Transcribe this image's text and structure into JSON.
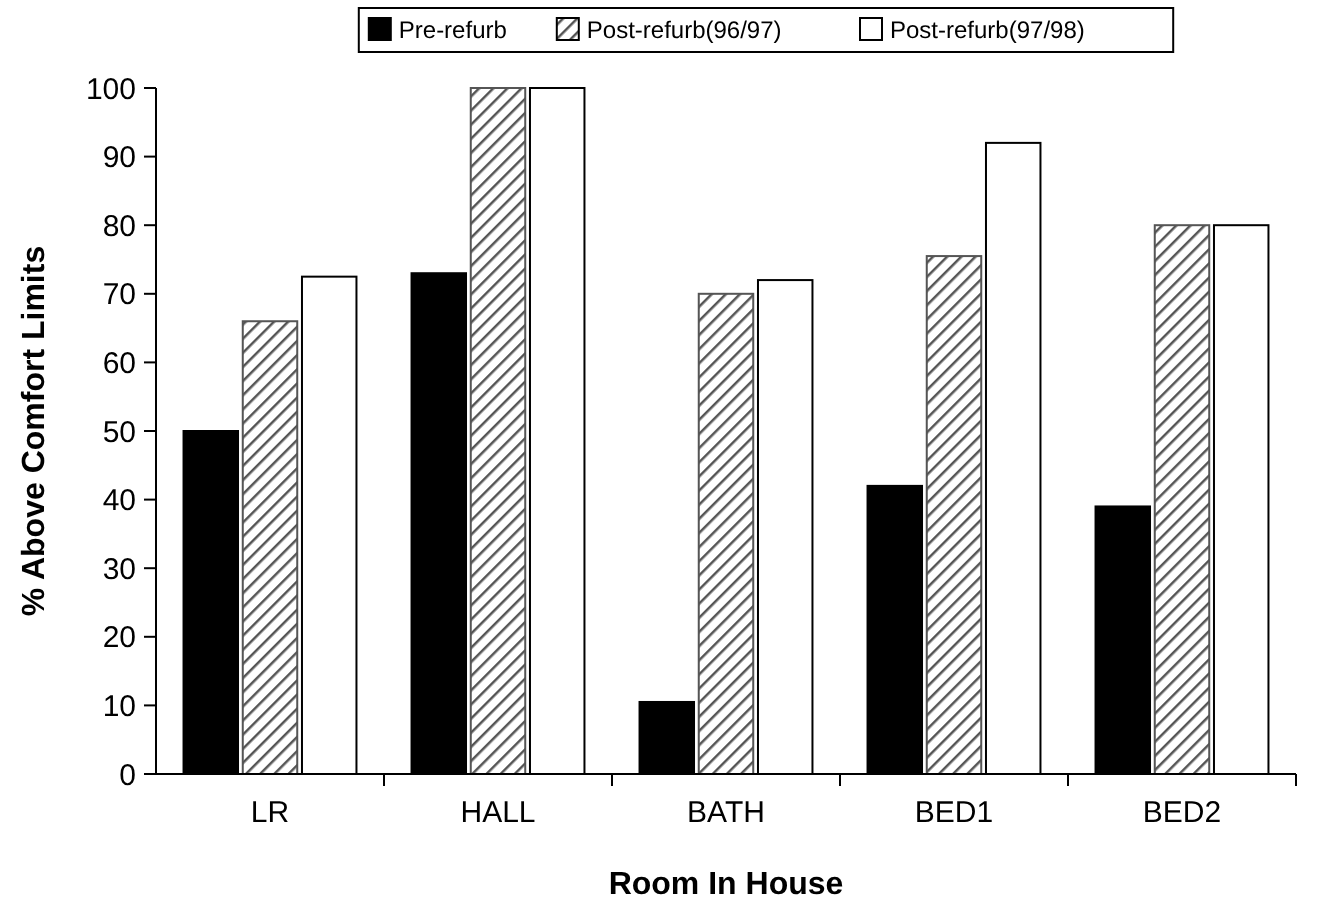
{
  "chart_data": {
    "type": "bar",
    "xlabel": "Room In House",
    "ylabel": "% Above Comfort Limits",
    "categories": [
      "LR",
      "HALL",
      "BATH",
      "BED1",
      "BED2"
    ],
    "series": [
      {
        "name": "Pre-refurb",
        "color": "#000000",
        "values": [
          50,
          73,
          10.5,
          42,
          39
        ]
      },
      {
        "name": "Post-refurb(96/97)",
        "color": "#555555",
        "values": [
          66,
          100,
          70,
          75.5,
          80
        ]
      },
      {
        "name": "Post-refurb(97/98)",
        "color": "#ffffff",
        "values": [
          72.5,
          100,
          72,
          92,
          80
        ]
      }
    ],
    "ylim": [
      0,
      100
    ],
    "yticks": [
      0,
      10,
      20,
      30,
      40,
      50,
      60,
      70,
      80,
      90,
      100
    ],
    "legend": "top",
    "grid": false
  }
}
